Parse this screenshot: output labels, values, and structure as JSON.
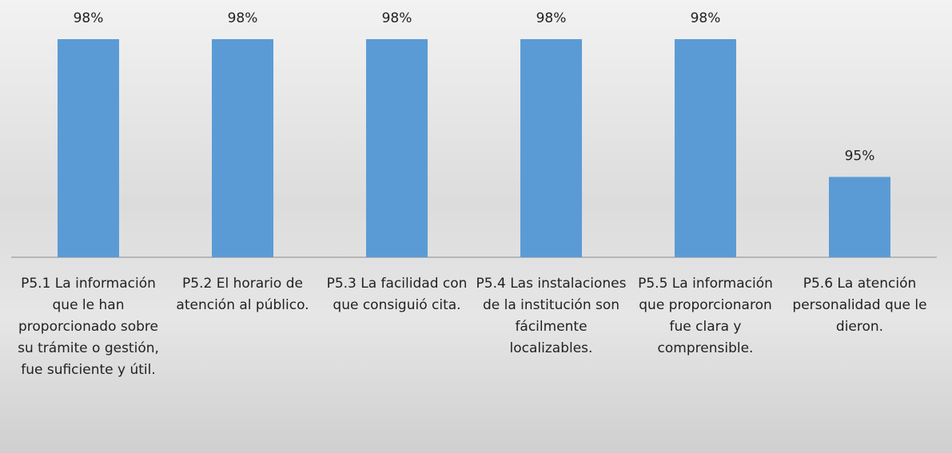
{
  "chart_data": {
    "type": "bar",
    "categories": [
      "P5.1 La información que le han proporcionado sobre su trámite o gestión, fue suficiente y útil.",
      "P5.2 El horario de atención al público.",
      "P5.3 La facilidad con que consiguió cita.",
      "P5.4 Las instalaciones de la institución son fácilmente localizables.",
      "P5.5 La información que proporcionaron fue clara y comprensible.",
      "P5.6 La atención personalidad que le dieron."
    ],
    "values": [
      98,
      98,
      98,
      98,
      98,
      95
    ],
    "value_labels": [
      "98%",
      "98%",
      "98%",
      "98%",
      "98%",
      "95%"
    ],
    "color": "#5b9bd5",
    "ylim": [
      93.25,
      98
    ]
  }
}
